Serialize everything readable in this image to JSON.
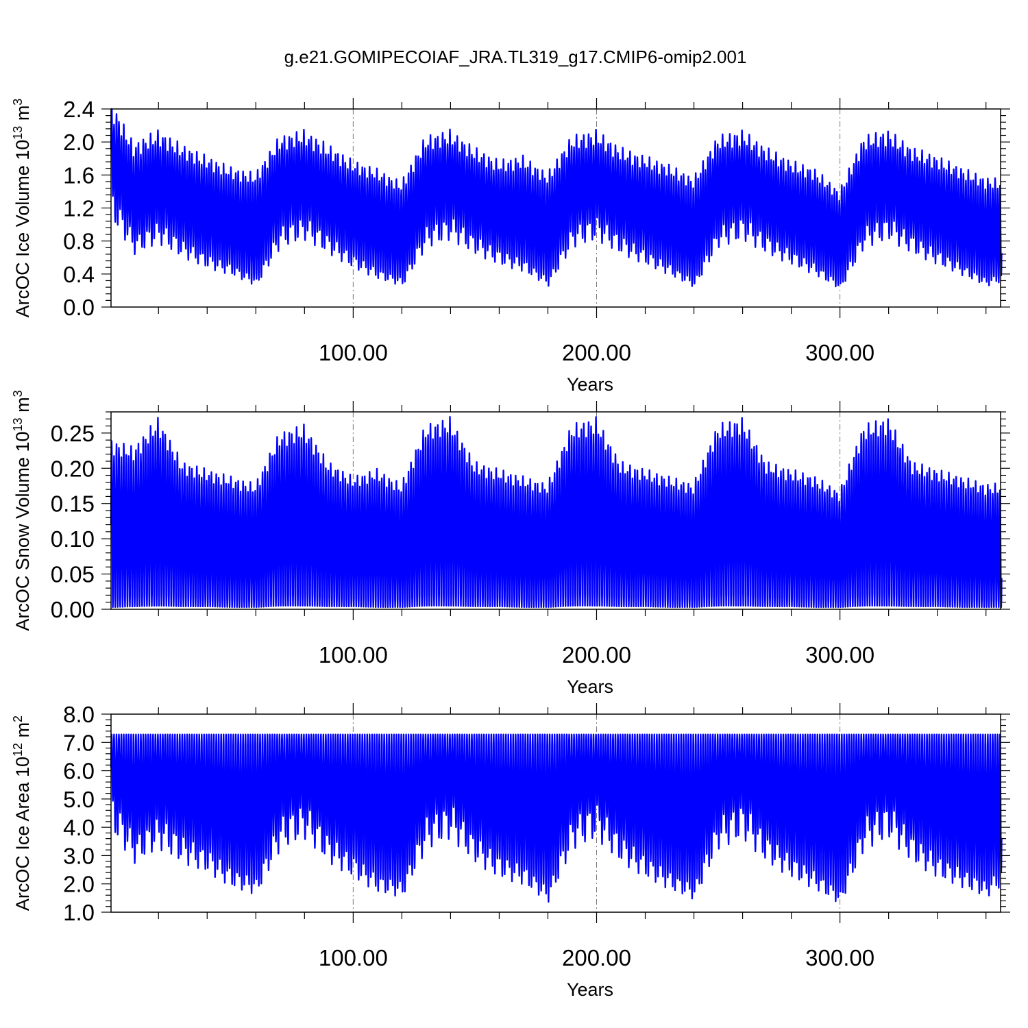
{
  "title": "g.e21.GOMIPECOIAF_JRA.TL319_g17.CMIP6-omip2.001",
  "chart_data": [
    {
      "id": "ice_volume",
      "type": "line",
      "title": "",
      "xlabel": "Years",
      "ylabel": "ArcOC Ice Volume 10",
      "ylabel_exponent": "13",
      "ylabel_unit": "m",
      "ylabel_unit_exponent": "3",
      "xlim": [
        0.5,
        366
      ],
      "ylim": [
        0.0,
        2.4
      ],
      "xticks": [
        100,
        200,
        300
      ],
      "xtick_labels": [
        "100.00",
        "200.00",
        "300.00"
      ],
      "yticks": [
        0.0,
        0.4,
        0.8,
        1.2,
        1.6,
        2.0,
        2.4
      ],
      "ytick_labels": [
        "0.0",
        "0.4",
        "0.8",
        "1.2",
        "1.6",
        "2.0",
        "2.4"
      ],
      "grid": "vertical dashed lines at major x ticks",
      "series": [
        {
          "color": "#0000ff",
          "description": "monthly seasonal cycle, 366 years; annual max/min envelope sampled every 10 years",
          "years": [
            1,
            10,
            20,
            30,
            40,
            50,
            60,
            70,
            80,
            90,
            100,
            110,
            120,
            130,
            140,
            150,
            160,
            170,
            180,
            190,
            200,
            210,
            220,
            230,
            240,
            250,
            260,
            270,
            280,
            290,
            300,
            310,
            320,
            330,
            340,
            350,
            360,
            366
          ],
          "annual_max": [
            2.38,
            1.9,
            2.05,
            1.88,
            1.75,
            1.62,
            1.55,
            1.98,
            2.05,
            1.88,
            1.7,
            1.6,
            1.45,
            1.98,
            2.05,
            1.85,
            1.7,
            1.75,
            1.55,
            1.98,
            2.05,
            1.85,
            1.75,
            1.65,
            1.5,
            1.98,
            2.05,
            1.85,
            1.7,
            1.6,
            1.35,
            1.98,
            2.05,
            1.85,
            1.75,
            1.62,
            1.5,
            1.48
          ],
          "annual_min": [
            1.2,
            0.75,
            0.9,
            0.7,
            0.55,
            0.45,
            0.3,
            0.85,
            0.95,
            0.75,
            0.55,
            0.4,
            0.3,
            0.85,
            0.95,
            0.75,
            0.6,
            0.5,
            0.3,
            0.85,
            0.95,
            0.75,
            0.6,
            0.45,
            0.28,
            0.85,
            0.95,
            0.75,
            0.6,
            0.45,
            0.25,
            0.85,
            0.95,
            0.75,
            0.6,
            0.45,
            0.3,
            0.35
          ]
        }
      ]
    },
    {
      "id": "snow_volume",
      "type": "line",
      "title": "",
      "xlabel": "Years",
      "ylabel": "ArcOC Snow Volume 10",
      "ylabel_exponent": "13",
      "ylabel_unit": "m",
      "ylabel_unit_exponent": "3",
      "xlim": [
        0.5,
        366
      ],
      "ylim": [
        0.0,
        0.28
      ],
      "xticks": [
        100,
        200,
        300
      ],
      "xtick_labels": [
        "100.00",
        "200.00",
        "300.00"
      ],
      "yticks": [
        0.0,
        0.05,
        0.1,
        0.15,
        0.2,
        0.25
      ],
      "ytick_labels": [
        "0.00",
        "0.05",
        "0.10",
        "0.15",
        "0.20",
        "0.25"
      ],
      "grid": "vertical dashed lines at major x ticks",
      "series": [
        {
          "color": "#0000ff",
          "description": "monthly seasonal cycle, 366 years; annual max/min envelope sampled every 10 years",
          "years": [
            1,
            10,
            20,
            30,
            40,
            50,
            60,
            70,
            80,
            90,
            100,
            110,
            120,
            130,
            140,
            150,
            160,
            170,
            180,
            190,
            200,
            210,
            220,
            230,
            240,
            250,
            260,
            270,
            280,
            290,
            300,
            310,
            320,
            330,
            340,
            350,
            360,
            366
          ],
          "annual_max": [
            0.23,
            0.22,
            0.26,
            0.2,
            0.19,
            0.18,
            0.17,
            0.24,
            0.25,
            0.2,
            0.18,
            0.19,
            0.17,
            0.25,
            0.26,
            0.2,
            0.19,
            0.18,
            0.17,
            0.25,
            0.26,
            0.2,
            0.19,
            0.18,
            0.17,
            0.25,
            0.26,
            0.2,
            0.19,
            0.18,
            0.16,
            0.25,
            0.26,
            0.2,
            0.19,
            0.18,
            0.17,
            0.17
          ],
          "annual_min": [
            0.003,
            0.004,
            0.005,
            0.004,
            0.004,
            0.003,
            0.003,
            0.005,
            0.005,
            0.004,
            0.004,
            0.003,
            0.003,
            0.005,
            0.005,
            0.004,
            0.004,
            0.003,
            0.003,
            0.005,
            0.005,
            0.004,
            0.004,
            0.003,
            0.003,
            0.005,
            0.005,
            0.004,
            0.004,
            0.003,
            0.003,
            0.005,
            0.005,
            0.004,
            0.004,
            0.003,
            0.003,
            0.003
          ]
        }
      ]
    },
    {
      "id": "ice_area",
      "type": "line",
      "title": "",
      "xlabel": "Years",
      "ylabel": "ArcOC Ice Area 10",
      "ylabel_exponent": "12",
      "ylabel_unit": "m",
      "ylabel_unit_exponent": "2",
      "xlim": [
        0.5,
        366
      ],
      "ylim": [
        1.0,
        8.0
      ],
      "xticks": [
        100,
        200,
        300
      ],
      "xtick_labels": [
        "100.00",
        "200.00",
        "300.00"
      ],
      "yticks": [
        1.0,
        2.0,
        3.0,
        4.0,
        5.0,
        6.0,
        7.0,
        8.0
      ],
      "ytick_labels": [
        "1.0",
        "2.0",
        "3.0",
        "4.0",
        "5.0",
        "6.0",
        "7.0",
        "8.0"
      ],
      "grid": "vertical dashed lines at major x ticks",
      "series": [
        {
          "color": "#0000ff",
          "description": "monthly seasonal cycle, 366 years; annual max/min envelope sampled every 10 years",
          "years": [
            1,
            10,
            20,
            30,
            40,
            50,
            60,
            70,
            80,
            90,
            100,
            110,
            120,
            130,
            140,
            150,
            160,
            170,
            180,
            190,
            200,
            210,
            220,
            230,
            240,
            250,
            260,
            270,
            280,
            290,
            300,
            310,
            320,
            330,
            340,
            350,
            360,
            366
          ],
          "annual_max": [
            7.28,
            7.28,
            7.28,
            7.28,
            7.28,
            7.28,
            7.28,
            7.28,
            7.28,
            7.28,
            7.28,
            7.28,
            7.28,
            7.28,
            7.28,
            7.28,
            7.28,
            7.28,
            7.28,
            7.28,
            7.28,
            7.28,
            7.28,
            7.28,
            7.28,
            7.28,
            7.28,
            7.28,
            7.28,
            7.28,
            7.28,
            7.28,
            7.28,
            7.28,
            7.28,
            7.28,
            7.28,
            7.28
          ],
          "annual_min": [
            4.4,
            3.2,
            3.8,
            3.2,
            2.8,
            2.2,
            1.9,
            3.8,
            4.2,
            3.2,
            2.6,
            2.0,
            1.8,
            3.8,
            4.2,
            3.2,
            2.6,
            2.3,
            1.6,
            3.8,
            4.2,
            3.2,
            2.6,
            2.1,
            1.7,
            3.8,
            4.2,
            3.2,
            2.6,
            2.1,
            1.5,
            3.8,
            4.2,
            3.2,
            2.6,
            2.2,
            1.8,
            2.2
          ]
        }
      ]
    }
  ]
}
